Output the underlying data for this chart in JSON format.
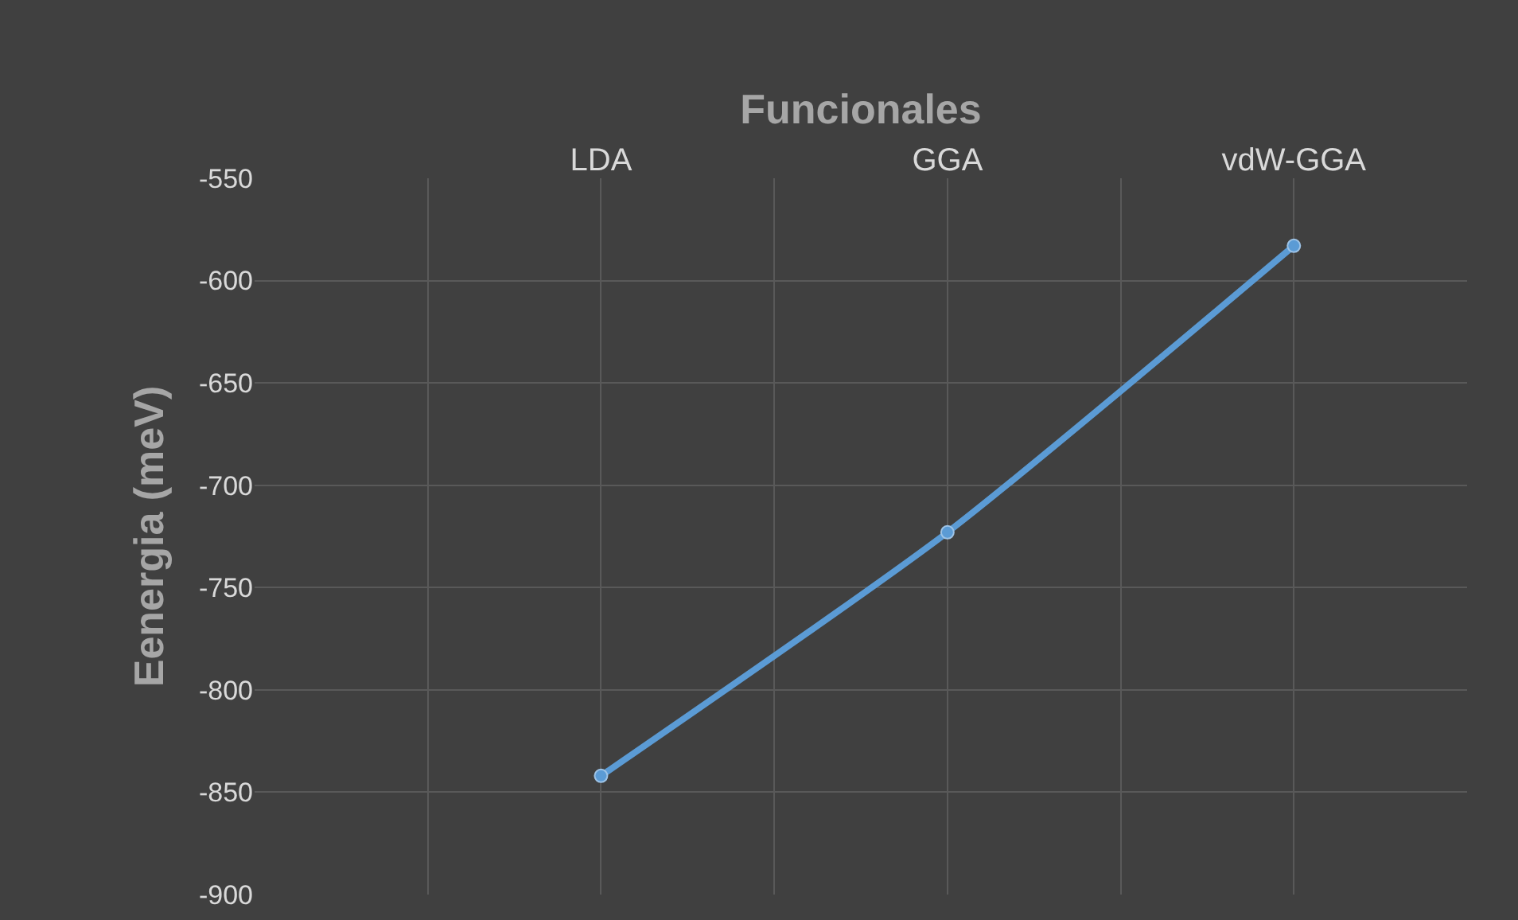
{
  "chart_data": {
    "type": "line",
    "xlabel": "Funcionales",
    "ylabel": "Eenergia (meV)",
    "categories": [
      "LDA",
      "GGA",
      "vdW-GGA"
    ],
    "series": [
      {
        "color": "#5b9bd5",
        "values": [
          -842,
          -723,
          -583
        ]
      }
    ],
    "ylim": [
      -900,
      -550
    ],
    "yticks": [
      -900,
      -850,
      -800,
      -750,
      -700,
      -650,
      -600,
      -550
    ],
    "grid": true,
    "marker": "circle",
    "line_style": "solid"
  }
}
